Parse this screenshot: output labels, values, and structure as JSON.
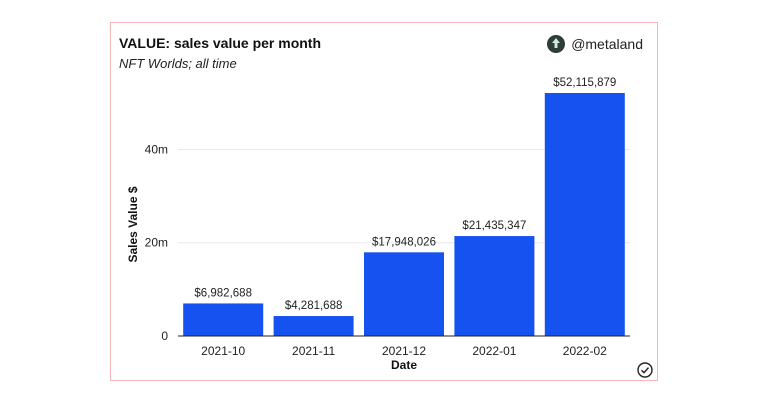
{
  "header": {
    "title": "VALUE: sales value per month",
    "subtitle": "NFT Worlds; all time",
    "brand": "@metaland"
  },
  "icons": {
    "brand": "metaland-logo-icon",
    "status": "check-circle-icon"
  },
  "colors": {
    "bar": "#1652f0",
    "grid": "#e9e9e9",
    "axis": "#222222"
  },
  "chart_data": {
    "type": "bar",
    "title": "VALUE: sales value per month",
    "subtitle": "NFT Worlds; all time",
    "xlabel": "Date",
    "ylabel": "Sales Value $",
    "categories": [
      "2021-10",
      "2021-11",
      "2021-12",
      "2022-01",
      "2022-02"
    ],
    "values": [
      6982688,
      4281688,
      17948026,
      21435347,
      52115879
    ],
    "data_labels": [
      "$6,982,688",
      "$4,281,688",
      "$17,948,026",
      "$21,435,347",
      "$52,115,879"
    ],
    "yticks": [
      0,
      20000000,
      40000000
    ],
    "ytick_labels": [
      "0",
      "20m",
      "40m"
    ],
    "ylim": [
      0,
      52115879
    ],
    "grid": true,
    "legend": "none"
  }
}
